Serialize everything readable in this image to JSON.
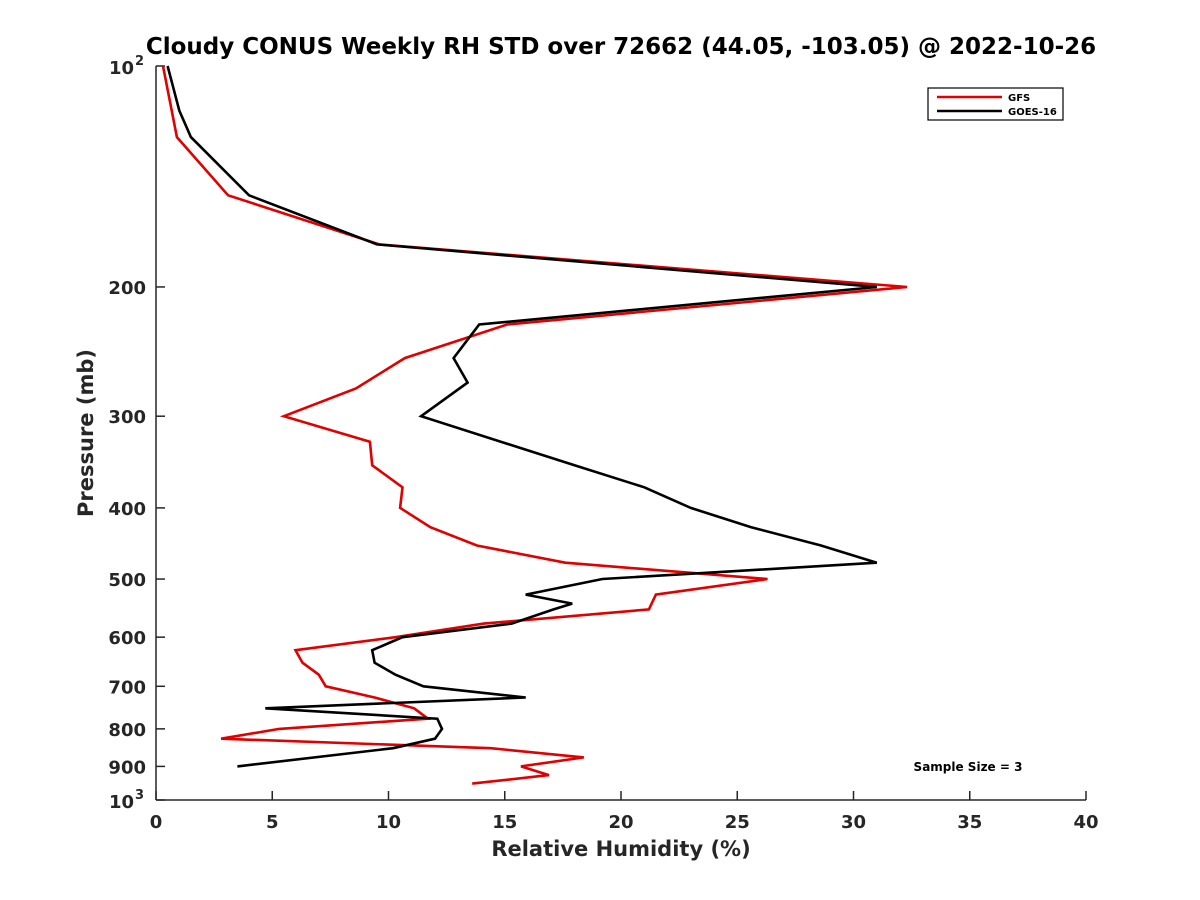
{
  "chart_data": {
    "type": "line",
    "title": "Cloudy CONUS Weekly RH STD over 72662 (44.05, -103.05) @ 2022-10-26",
    "xlabel": "Relative Humidity (%)",
    "ylabel": "Pressure (mb)",
    "xlim": [
      0,
      40
    ],
    "ylim": [
      100,
      1000
    ],
    "y_scale": "log",
    "y_reversed": true,
    "grid": false,
    "legend_position": "top-right",
    "x_ticks": [
      "0",
      "5",
      "10",
      "15",
      "20",
      "25",
      "30",
      "35",
      "40"
    ],
    "y_ticks": [
      {
        "value": 100,
        "base": "10",
        "exp": "2"
      },
      {
        "value": 200,
        "label": "200"
      },
      {
        "value": 300,
        "label": "300"
      },
      {
        "value": 400,
        "label": "400"
      },
      {
        "value": 500,
        "label": "500"
      },
      {
        "value": 600,
        "label": "600"
      },
      {
        "value": 700,
        "label": "700"
      },
      {
        "value": 800,
        "label": "800"
      },
      {
        "value": 900,
        "label": "900"
      },
      {
        "value": 1000,
        "base": "10",
        "exp": "3"
      }
    ],
    "series": [
      {
        "name": "GFS",
        "color": "#e00000",
        "points": [
          [
            0.3,
            100
          ],
          [
            0.9,
            125
          ],
          [
            3.1,
            150
          ],
          [
            9.6,
            175
          ],
          [
            32.3,
            200
          ],
          [
            15.1,
            225
          ],
          [
            10.7,
            250
          ],
          [
            8.6,
            275
          ],
          [
            5.5,
            300
          ],
          [
            9.2,
            325
          ],
          [
            9.3,
            350
          ],
          [
            10.6,
            375
          ],
          [
            10.5,
            400
          ],
          [
            11.8,
            425
          ],
          [
            13.8,
            450
          ],
          [
            17.6,
            475
          ],
          [
            26.3,
            500
          ],
          [
            21.5,
            525
          ],
          [
            21.2,
            550
          ],
          [
            14.1,
            575
          ],
          [
            10.3,
            600
          ],
          [
            6.0,
            625
          ],
          [
            6.3,
            650
          ],
          [
            7.0,
            675
          ],
          [
            7.3,
            700
          ],
          [
            9.4,
            725
          ],
          [
            11.1,
            750
          ],
          [
            11.7,
            775
          ],
          [
            5.3,
            800
          ],
          [
            2.8,
            825
          ],
          [
            14.4,
            850
          ],
          [
            18.4,
            875
          ],
          [
            15.7,
            900
          ],
          [
            16.9,
            925
          ],
          [
            13.6,
            950
          ]
        ]
      },
      {
        "name": "GOES-16",
        "color": "#000000",
        "points": [
          [
            0.5,
            100
          ],
          [
            1.0,
            115
          ],
          [
            1.5,
            125
          ],
          [
            4.0,
            150
          ],
          [
            9.5,
            175
          ],
          [
            31.0,
            200
          ],
          [
            13.9,
            225
          ],
          [
            12.8,
            250
          ],
          [
            13.4,
            270
          ],
          [
            11.4,
            300
          ],
          [
            18.0,
            350
          ],
          [
            21.0,
            375
          ],
          [
            23.0,
            400
          ],
          [
            25.6,
            425
          ],
          [
            28.6,
            450
          ],
          [
            31.0,
            475
          ],
          [
            19.2,
            500
          ],
          [
            15.9,
            525
          ],
          [
            17.9,
            540
          ],
          [
            17.1,
            550
          ],
          [
            15.3,
            575
          ],
          [
            10.6,
            600
          ],
          [
            9.3,
            625
          ],
          [
            9.4,
            650
          ],
          [
            10.3,
            675
          ],
          [
            11.5,
            700
          ],
          [
            15.9,
            725
          ],
          [
            4.7,
            750
          ],
          [
            12.1,
            775
          ],
          [
            12.3,
            800
          ],
          [
            12.0,
            825
          ],
          [
            10.2,
            850
          ],
          [
            3.5,
            900
          ]
        ]
      }
    ],
    "annotations": {
      "sample_size": "Sample Size = 3"
    }
  }
}
